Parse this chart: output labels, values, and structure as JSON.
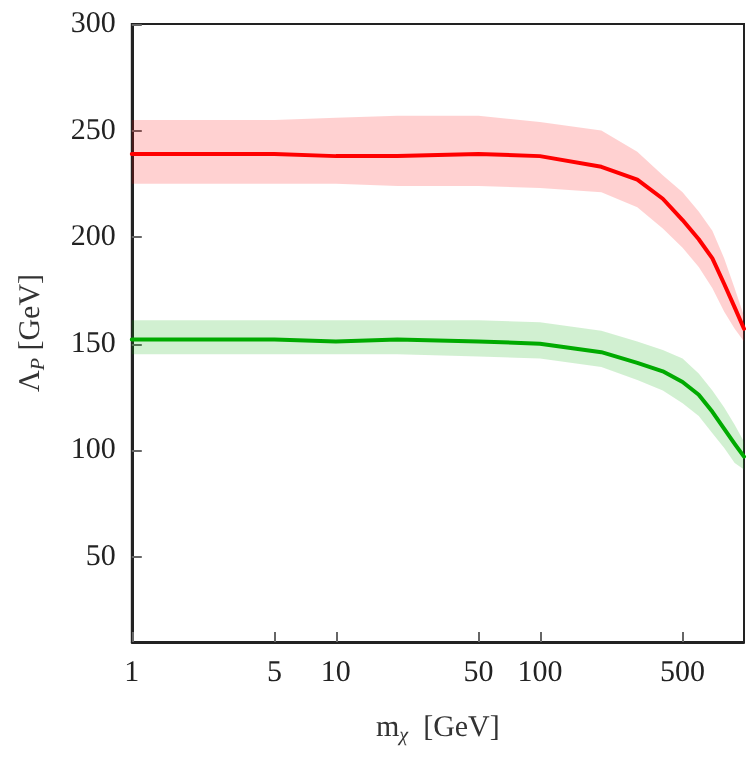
{
  "chart_data": {
    "type": "line",
    "xlabel": "m$_{χ}$  [GeV]",
    "ylabel": "Λ$_{P}$ [GeV]",
    "log": "x",
    "xlim": [
      1,
      1000
    ],
    "xticks": [
      1,
      5,
      10,
      50,
      100,
      500
    ],
    "ylim": [
      10,
      300
    ],
    "yticks": [
      50,
      100,
      150,
      200,
      250,
      300
    ],
    "grid": false,
    "marker": "none",
    "line_style": "solid",
    "x": [
      1,
      2,
      5,
      10,
      20,
      50,
      100,
      200,
      300,
      400,
      500,
      600,
      700,
      800,
      900,
      1000
    ],
    "series": [
      {
        "color": "#ff0000",
        "values": [
          239,
          239,
          239,
          238,
          238,
          239,
          238,
          233,
          227,
          218,
          208,
          199,
          190,
          178,
          167,
          157
        ],
        "lower": [
          225,
          225,
          225,
          225,
          224,
          224,
          223,
          221,
          214,
          204,
          195,
          186,
          176,
          165,
          157,
          151
        ],
        "upper": [
          255,
          255,
          255,
          256,
          257,
          257,
          254,
          250,
          240,
          229,
          221,
          212,
          203,
          190,
          176,
          163
        ]
      },
      {
        "color": "#00aa00",
        "values": [
          152,
          152,
          152,
          151,
          152,
          151,
          150,
          146,
          141,
          137,
          132,
          126,
          118,
          110,
          103,
          97
        ],
        "lower": [
          145,
          145,
          145,
          145,
          145,
          144,
          143,
          139,
          133,
          128,
          122,
          116,
          108,
          101,
          94,
          91
        ],
        "upper": [
          161,
          161,
          161,
          161,
          161,
          161,
          160,
          156,
          151,
          147,
          143,
          136,
          128,
          120,
          112,
          104
        ]
      }
    ]
  }
}
